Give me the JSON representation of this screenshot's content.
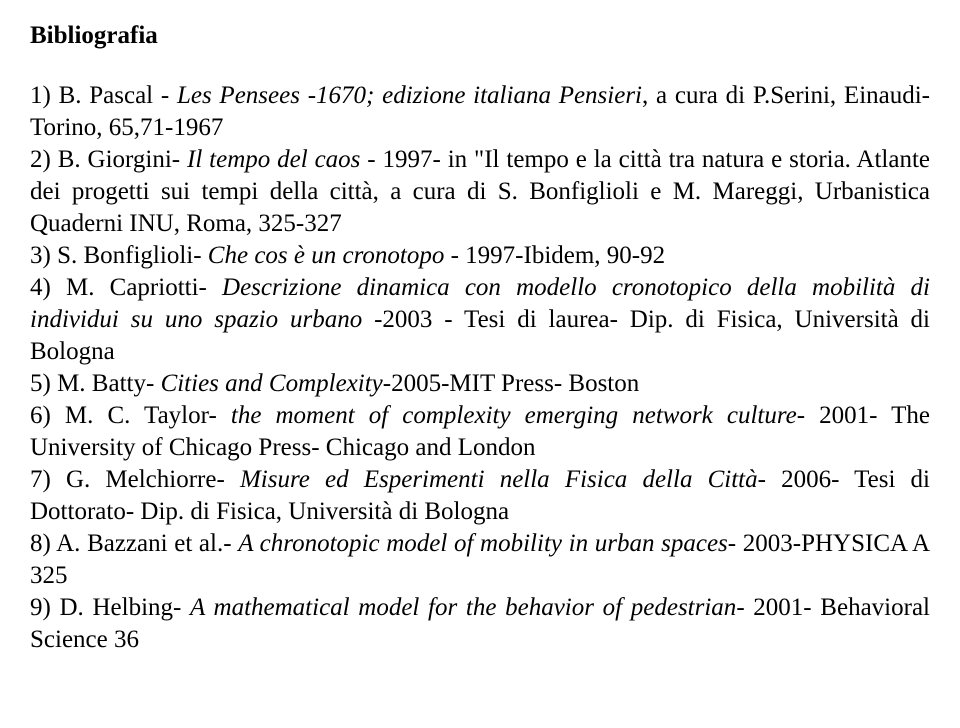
{
  "title": "Bibliografia",
  "entries": [
    {
      "num": "1",
      "author": "B. Pascal",
      "title_ital": "Les Pensees -1670; edizione italiana Pensieri",
      "rest": ", a cura di P.Serini, Einaudi-Torino, 65,71-1967"
    },
    {
      "num": "2",
      "author": "B. Giorgini",
      "title_ital": "Il tempo del caos",
      "rest": " - 1997- in \"Il tempo e la città tra natura e storia. Atlante dei progetti sui tempi della città, a cura di S. Bonfiglioli e M. Mareggi, Urbanistica Quaderni INU, Roma, 325-327"
    },
    {
      "num": "3",
      "author": "S. Bonfiglioli",
      "title_ital": "Che cos è un cronotopo",
      "rest": " - 1997-Ibidem, 90-92"
    },
    {
      "num": "4",
      "author": "M. Capriotti",
      "title_ital": "Descrizione dinamica con modello cronotopico della mobilità di individui su uno spazio urbano",
      "rest": " -2003 - Tesi di laurea- Dip. di Fisica, Università di Bologna"
    },
    {
      "num": "5",
      "author": "M. Batty",
      "title_ital": "Cities and Complexity",
      "rest": "-2005-MIT Press- Boston"
    },
    {
      "num": "6",
      "author": "M. C. Taylor",
      "title_ital": "the moment of complexity emerging network culture",
      "rest": "- 2001- The University of Chicago Press- Chicago and London"
    },
    {
      "num": "7",
      "author": "G. Melchiorre",
      "title_ital": "Misure ed Esperimenti nella Fisica della Città",
      "rest": "- 2006- Tesi di Dottorato- Dip. di Fisica, Università di Bologna"
    },
    {
      "num": "8",
      "author": "A. Bazzani et al.",
      "title_ital": "A chronotopic model of mobility in urban spaces",
      "rest": "- 2003-PHYSICA A 325"
    },
    {
      "num": "9",
      "author": "D. Helbing",
      "title_ital": "A mathematical model for the behavior of pedestrian",
      "rest": "- 2001- Behavioral Science 36"
    }
  ]
}
